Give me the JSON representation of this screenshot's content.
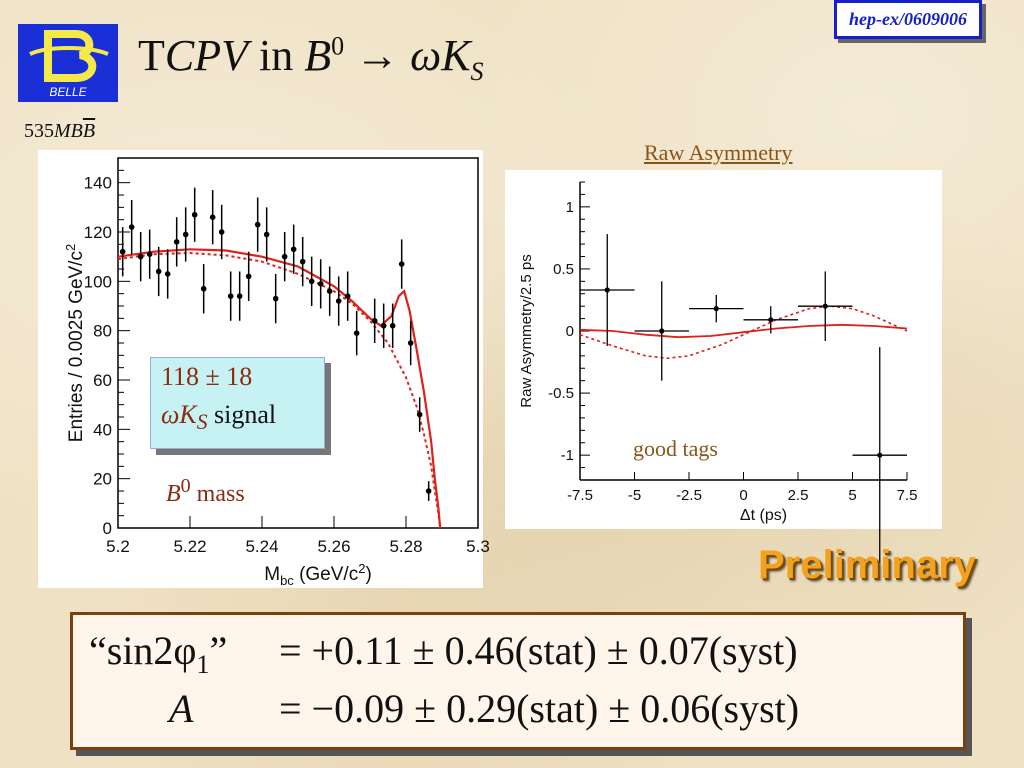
{
  "header": {
    "title_T": "T",
    "title_CPV": "CPV",
    "title_in": " in ",
    "title_B": "B",
    "title_B_sup": "0",
    "title_arrow": " → ",
    "title_omegaK": "ωK",
    "title_sub": "S",
    "logo_text": "BELLE",
    "reference": "hep-ex/0609006",
    "lumi_num": "535",
    "lumi_MB": "MB",
    "lumi_Bbar": "B"
  },
  "labels": {
    "raw_asymmetry": "Raw Asymmetry",
    "signal_count": "118 ± 18",
    "signal_omegaK": "ωK",
    "signal_sub": "S",
    "signal_word": " signal",
    "mass_B": "B",
    "mass_sup": "0",
    "mass_word": " mass",
    "good_tags": "good tags",
    "preliminary": "Preliminary"
  },
  "results": {
    "line1_label": "“sin2φ",
    "line1_sub": "1",
    "line1_close": "”",
    "line1_value": " = +0.11 ± 0.46(stat) ± 0.07(syst)",
    "line2_label": "A",
    "line2_value": " = −0.09 ± 0.29(stat) ± 0.06(syst)"
  },
  "colors": {
    "fit": "#e0201a",
    "logo_bg": "#1a2fd6",
    "logo_fg": "#f5e84a"
  },
  "chart_data": [
    {
      "type": "scatter",
      "xlabel": "M",
      "xlabel_sub": "bc",
      "xlabel_unit": " (GeV/c",
      "xlabel_unit_sup": "2",
      "xlabel_unit_close": ")",
      "ylabel": "Entries / 0.0025 GeV/c",
      "ylabel_sup": "2",
      "xlim": [
        5.2,
        5.3
      ],
      "ylim": [
        0,
        150
      ],
      "xticks": [
        "5.2",
        "5.22",
        "5.24",
        "5.26",
        "5.28",
        "5.3"
      ],
      "yticks": [
        "0",
        "20",
        "40",
        "60",
        "80",
        "100",
        "120",
        "140"
      ],
      "points": [
        {
          "x": 5.2013,
          "y": 112,
          "err": 10
        },
        {
          "x": 5.2038,
          "y": 122,
          "err": 11
        },
        {
          "x": 5.2063,
          "y": 110,
          "err": 10
        },
        {
          "x": 5.2088,
          "y": 111,
          "err": 10
        },
        {
          "x": 5.2113,
          "y": 104,
          "err": 10
        },
        {
          "x": 5.2138,
          "y": 103,
          "err": 10
        },
        {
          "x": 5.2163,
          "y": 116,
          "err": 10
        },
        {
          "x": 5.2188,
          "y": 119,
          "err": 11
        },
        {
          "x": 5.2213,
          "y": 127,
          "err": 11
        },
        {
          "x": 5.2238,
          "y": 97,
          "err": 10
        },
        {
          "x": 5.2263,
          "y": 126,
          "err": 11
        },
        {
          "x": 5.2288,
          "y": 120,
          "err": 11
        },
        {
          "x": 5.2313,
          "y": 94,
          "err": 10
        },
        {
          "x": 5.2338,
          "y": 94,
          "err": 10
        },
        {
          "x": 5.2363,
          "y": 102,
          "err": 10
        },
        {
          "x": 5.2388,
          "y": 123,
          "err": 11
        },
        {
          "x": 5.2413,
          "y": 119,
          "err": 11
        },
        {
          "x": 5.2438,
          "y": 93,
          "err": 10
        },
        {
          "x": 5.2463,
          "y": 110,
          "err": 10
        },
        {
          "x": 5.2488,
          "y": 113,
          "err": 10
        },
        {
          "x": 5.2513,
          "y": 108,
          "err": 10
        },
        {
          "x": 5.2538,
          "y": 100,
          "err": 10
        },
        {
          "x": 5.2563,
          "y": 99,
          "err": 10
        },
        {
          "x": 5.2588,
          "y": 96,
          "err": 10
        },
        {
          "x": 5.2613,
          "y": 92,
          "err": 10
        },
        {
          "x": 5.2638,
          "y": 94,
          "err": 10
        },
        {
          "x": 5.2663,
          "y": 79,
          "err": 9
        },
        {
          "x": 5.2713,
          "y": 84,
          "err": 9
        },
        {
          "x": 5.2738,
          "y": 82,
          "err": 9
        },
        {
          "x": 5.2763,
          "y": 82,
          "err": 9
        },
        {
          "x": 5.2788,
          "y": 107,
          "err": 10
        },
        {
          "x": 5.2813,
          "y": 75,
          "err": 9
        },
        {
          "x": 5.2838,
          "y": 46,
          "err": 7
        },
        {
          "x": 5.2863,
          "y": 15,
          "err": 4
        }
      ],
      "fit_total": [
        [
          5.2,
          110
        ],
        [
          5.21,
          112
        ],
        [
          5.22,
          113
        ],
        [
          5.23,
          112.5
        ],
        [
          5.24,
          110
        ],
        [
          5.25,
          106
        ],
        [
          5.26,
          98
        ],
        [
          5.265,
          92
        ],
        [
          5.27,
          85
        ],
        [
          5.273,
          82
        ],
        [
          5.276,
          86
        ],
        [
          5.278,
          94
        ],
        [
          5.2795,
          96
        ],
        [
          5.281,
          88
        ],
        [
          5.283,
          72
        ],
        [
          5.285,
          55
        ],
        [
          5.287,
          35
        ],
        [
          5.288,
          20
        ],
        [
          5.289,
          8
        ],
        [
          5.2895,
          0
        ]
      ],
      "fit_background": [
        [
          5.2,
          109
        ],
        [
          5.21,
          111
        ],
        [
          5.22,
          111.5
        ],
        [
          5.23,
          110.5
        ],
        [
          5.24,
          108
        ],
        [
          5.25,
          103
        ],
        [
          5.26,
          96
        ],
        [
          5.265,
          91
        ],
        [
          5.27,
          84
        ],
        [
          5.275,
          75
        ],
        [
          5.28,
          61
        ],
        [
          5.283,
          49
        ],
        [
          5.285,
          38
        ],
        [
          5.287,
          25
        ],
        [
          5.288,
          15
        ],
        [
          5.289,
          6
        ],
        [
          5.2895,
          0
        ]
      ]
    },
    {
      "type": "scatter",
      "xlabel": "Δt (ps)",
      "ylabel": "Raw Asymmetry/2.5 ps",
      "xlim": [
        -7.5,
        7.5
      ],
      "ylim": [
        -1.2,
        1.2
      ],
      "xticks": [
        "-7.5",
        "-5",
        "-2.5",
        "0",
        "2.5",
        "5",
        "7.5"
      ],
      "yticks": [
        "-1",
        "-0.5",
        "0",
        "0.5",
        "1"
      ],
      "points": [
        {
          "x": -6.25,
          "y": 0.33,
          "err": 0.45,
          "xerr": 1.25
        },
        {
          "x": -3.75,
          "y": 0.0,
          "err": 0.4,
          "xerr": 1.25
        },
        {
          "x": -1.25,
          "y": 0.18,
          "err": 0.11,
          "xerr": 1.25
        },
        {
          "x": 1.25,
          "y": 0.09,
          "err": 0.11,
          "xerr": 1.25
        },
        {
          "x": 3.75,
          "y": 0.2,
          "err": 0.28,
          "xerr": 1.25
        },
        {
          "x": 6.25,
          "y": -1.0,
          "err": 0.87,
          "xerr": 1.25
        }
      ],
      "fit_solid": [
        [
          -7.5,
          0.01
        ],
        [
          -6,
          0.0
        ],
        [
          -4.5,
          -0.03
        ],
        [
          -3,
          -0.05
        ],
        [
          -1.5,
          -0.04
        ],
        [
          0,
          -0.01
        ],
        [
          1.5,
          0.02
        ],
        [
          3,
          0.04
        ],
        [
          4.5,
          0.05
        ],
        [
          6,
          0.04
        ],
        [
          7.5,
          0.02
        ]
      ],
      "fit_dashed": [
        [
          -7.5,
          -0.03
        ],
        [
          -6,
          -0.12
        ],
        [
          -4.5,
          -0.2
        ],
        [
          -3.5,
          -0.22
        ],
        [
          -2.5,
          -0.2
        ],
        [
          -1,
          -0.11
        ],
        [
          0,
          -0.03
        ],
        [
          1.5,
          0.09
        ],
        [
          3,
          0.18
        ],
        [
          4,
          0.2
        ],
        [
          5,
          0.18
        ],
        [
          6,
          0.12
        ],
        [
          7,
          0.04
        ],
        [
          7.5,
          0.0
        ]
      ]
    }
  ]
}
